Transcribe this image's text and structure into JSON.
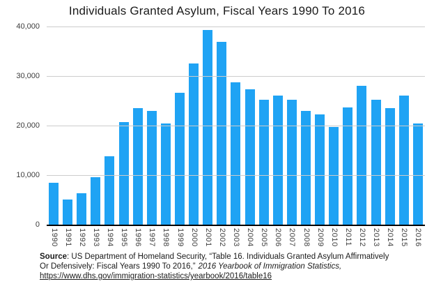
{
  "title": "Individuals Granted Asylum, Fiscal Years 1990 To 2016",
  "chart_data": {
    "type": "bar",
    "title": "Individuals Granted Asylum, Fiscal Years 1990 To 2016",
    "xlabel": "",
    "ylabel": "",
    "ylim": [
      0,
      40000
    ],
    "grid": true,
    "legend": false,
    "bar_color": "#1fa3f4",
    "gridline_color": "#cccccc",
    "axis_color": "#000000",
    "categories": [
      "1990",
      "1991",
      "1992",
      "1993",
      "1994",
      "1995",
      "1996",
      "1997",
      "1998",
      "1999",
      "2000",
      "2001",
      "2002",
      "2003",
      "2004",
      "2005",
      "2006",
      "2007",
      "2008",
      "2009",
      "2010",
      "2011",
      "2012",
      "2013",
      "2014",
      "2015",
      "2016"
    ],
    "values": [
      8472,
      5035,
      6307,
      9555,
      13741,
      20652,
      23544,
      22939,
      20470,
      26578,
      32481,
      39310,
      36894,
      28684,
      27321,
      25257,
      26113,
      25270,
      22930,
      22219,
      19766,
      23669,
      28081,
      25199,
      23533,
      26124,
      20455
    ],
    "yticks": [
      {
        "value": 40000,
        "label": "40,000"
      },
      {
        "value": 30000,
        "label": "30,000"
      },
      {
        "value": 20000,
        "label": "20,000"
      },
      {
        "value": 10000,
        "label": "10,000"
      },
      {
        "value": 0,
        "label": "0"
      }
    ]
  },
  "source": {
    "label": "Source",
    "line1_rest": ": US Department of Homeland Security, “Table 16. Individuals Granted Asylum Affirmatively",
    "line2_plain": "Or Defensively: Fiscal Years 1990 To 2016,”",
    "line2_italic": "2016 Yearbook of Immigration Statistics,",
    "link": "https://www.dhs.gov/immigration-statistics/yearbook/2016/table16"
  }
}
